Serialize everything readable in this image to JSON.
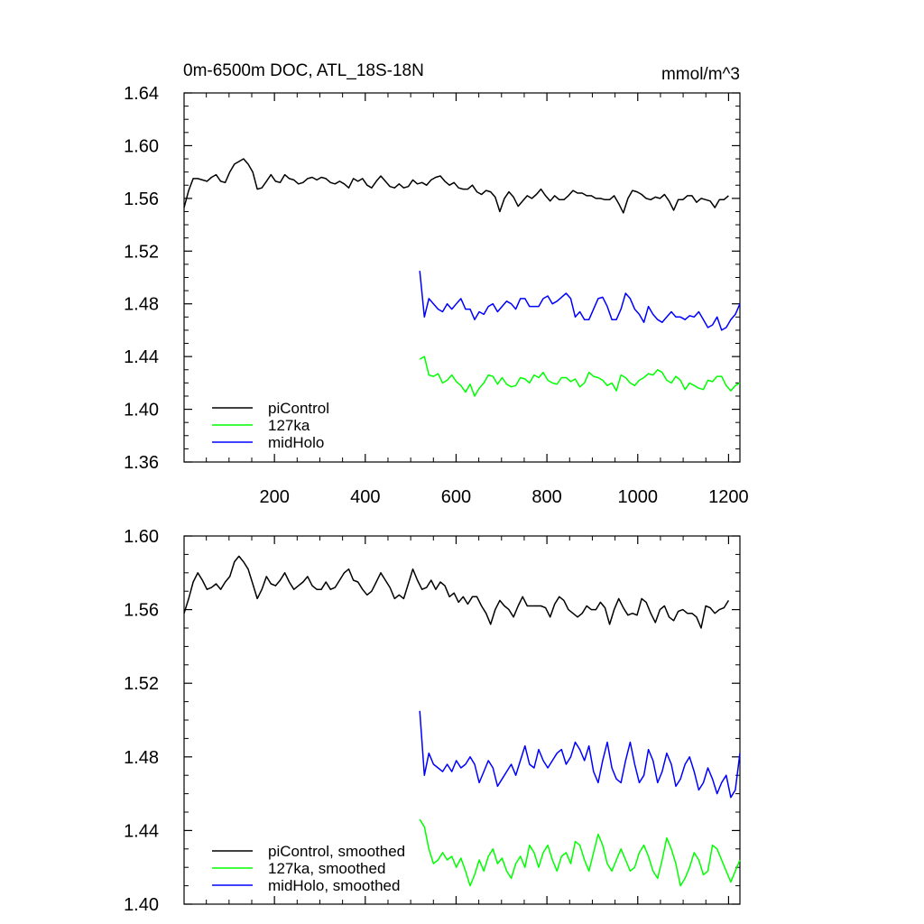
{
  "chart_data": [
    {
      "type": "line",
      "title_left": "0m-6500m DOC, ATL_18S-18N",
      "title_right": "mmol/m^3",
      "xlim": [
        1,
        1225
      ],
      "ylim": [
        1.36,
        1.64
      ],
      "x_ticks": [
        200,
        400,
        600,
        800,
        1000,
        1200
      ],
      "y_ticks": [
        1.36,
        1.4,
        1.44,
        1.48,
        1.52,
        1.56,
        1.6,
        1.64
      ],
      "y_tick_labels": [
        "1.36",
        "1.40",
        "1.44",
        "1.48",
        "1.52",
        "1.56",
        "1.60",
        "1.64"
      ],
      "x_tick_labels": [
        "200",
        "400",
        "600",
        "800",
        "1000",
        "1200"
      ],
      "legend_position": "bottom-left",
      "series": [
        {
          "name": "piControl",
          "color": "#000000",
          "x_start": 1,
          "x_end": 1200,
          "step": 10,
          "values": [
            1.553,
            1.566,
            1.575,
            1.575,
            1.574,
            1.573,
            1.576,
            1.578,
            1.573,
            1.572,
            1.58,
            1.586,
            1.588,
            1.59,
            1.586,
            1.58,
            1.567,
            1.568,
            1.573,
            1.578,
            1.573,
            1.572,
            1.578,
            1.575,
            1.574,
            1.571,
            1.572,
            1.575,
            1.576,
            1.574,
            1.576,
            1.575,
            1.572,
            1.571,
            1.573,
            1.571,
            1.568,
            1.575,
            1.573,
            1.575,
            1.57,
            1.568,
            1.573,
            1.577,
            1.573,
            1.569,
            1.568,
            1.571,
            1.568,
            1.569,
            1.574,
            1.571,
            1.572,
            1.57,
            1.574,
            1.576,
            1.577,
            1.573,
            1.57,
            1.572,
            1.568,
            1.567,
            1.567,
            1.57,
            1.565,
            1.563,
            1.566,
            1.565,
            1.561,
            1.55,
            1.56,
            1.565,
            1.561,
            1.554,
            1.558,
            1.562,
            1.56,
            1.563,
            1.567,
            1.562,
            1.558,
            1.562,
            1.559,
            1.559,
            1.562,
            1.566,
            1.564,
            1.564,
            1.562,
            1.562,
            1.56,
            1.56,
            1.559,
            1.559,
            1.562,
            1.556,
            1.549,
            1.56,
            1.566,
            1.565,
            1.563,
            1.56,
            1.559,
            1.561,
            1.56,
            1.563,
            1.558,
            1.551,
            1.559,
            1.559,
            1.562,
            1.562,
            1.557,
            1.56,
            1.559,
            1.558,
            1.553,
            1.559,
            1.559,
            1.562
          ]
        },
        {
          "name": "127ka",
          "color": "#00ff00",
          "x_start": 520,
          "x_end": 1225,
          "step": 10,
          "values": [
            1.438,
            1.44,
            1.426,
            1.425,
            1.427,
            1.42,
            1.422,
            1.426,
            1.421,
            1.418,
            1.413,
            1.419,
            1.41,
            1.416,
            1.42,
            1.426,
            1.425,
            1.419,
            1.424,
            1.419,
            1.417,
            1.418,
            1.424,
            1.423,
            1.42,
            1.426,
            1.424,
            1.428,
            1.422,
            1.42,
            1.419,
            1.424,
            1.424,
            1.421,
            1.423,
            1.417,
            1.42,
            1.428,
            1.425,
            1.424,
            1.422,
            1.418,
            1.42,
            1.414,
            1.426,
            1.424,
            1.42,
            1.418,
            1.422,
            1.424,
            1.427,
            1.426,
            1.43,
            1.428,
            1.422,
            1.42,
            1.425,
            1.422,
            1.415,
            1.42,
            1.418,
            1.416,
            1.415,
            1.422,
            1.421,
            1.425,
            1.425,
            1.418,
            1.414,
            1.418,
            1.42
          ]
        },
        {
          "name": "midHolo",
          "color": "#0000ff",
          "x_start": 520,
          "x_end": 1225,
          "step": 10,
          "values": [
            1.505,
            1.47,
            1.484,
            1.48,
            1.476,
            1.474,
            1.48,
            1.476,
            1.48,
            1.484,
            1.476,
            1.476,
            1.468,
            1.474,
            1.472,
            1.478,
            1.48,
            1.474,
            1.478,
            1.482,
            1.48,
            1.476,
            1.484,
            1.484,
            1.478,
            1.478,
            1.478,
            1.484,
            1.486,
            1.48,
            1.482,
            1.485,
            1.488,
            1.484,
            1.47,
            1.474,
            1.468,
            1.468,
            1.476,
            1.484,
            1.485,
            1.478,
            1.468,
            1.468,
            1.476,
            1.488,
            1.484,
            1.476,
            1.472,
            1.466,
            1.478,
            1.472,
            1.468,
            1.466,
            1.47,
            1.474,
            1.47,
            1.47,
            1.468,
            1.471,
            1.47,
            1.474,
            1.468,
            1.462,
            1.464,
            1.47,
            1.46,
            1.462,
            1.468,
            1.472,
            1.48
          ]
        }
      ],
      "legend": [
        "piControl",
        "127ka",
        "midHolo"
      ]
    },
    {
      "type": "line",
      "xlim": [
        1,
        1225
      ],
      "ylim": [
        1.4,
        1.6
      ],
      "x_ticks": [
        200,
        400,
        600,
        800,
        1000,
        1200
      ],
      "y_ticks": [
        1.4,
        1.44,
        1.48,
        1.52,
        1.56,
        1.6
      ],
      "y_tick_labels": [
        "1.40",
        "1.44",
        "1.48",
        "1.52",
        "1.56",
        "1.60"
      ],
      "legend_position": "bottom-left",
      "series": [
        {
          "name": "piControl, smoothed",
          "color": "#000000",
          "x_start": 1,
          "x_end": 1200,
          "step": 10,
          "values": [
            1.558,
            1.566,
            1.575,
            1.58,
            1.576,
            1.571,
            1.572,
            1.574,
            1.571,
            1.575,
            1.578,
            1.586,
            1.589,
            1.586,
            1.582,
            1.574,
            1.566,
            1.571,
            1.578,
            1.574,
            1.573,
            1.576,
            1.58,
            1.575,
            1.571,
            1.573,
            1.575,
            1.578,
            1.573,
            1.571,
            1.571,
            1.575,
            1.571,
            1.572,
            1.576,
            1.58,
            1.582,
            1.576,
            1.575,
            1.571,
            1.568,
            1.57,
            1.575,
            1.58,
            1.576,
            1.572,
            1.566,
            1.568,
            1.566,
            1.574,
            1.582,
            1.576,
            1.571,
            1.572,
            1.576,
            1.571,
            1.575,
            1.573,
            1.567,
            1.569,
            1.564,
            1.567,
            1.563,
            1.567,
            1.567,
            1.562,
            1.558,
            1.552,
            1.56,
            1.565,
            1.562,
            1.56,
            1.556,
            1.562,
            1.567,
            1.562,
            1.562,
            1.562,
            1.562,
            1.561,
            1.556,
            1.563,
            1.567,
            1.565,
            1.56,
            1.558,
            1.556,
            1.558,
            1.562,
            1.56,
            1.56,
            1.564,
            1.561,
            1.552,
            1.56,
            1.566,
            1.561,
            1.557,
            1.558,
            1.557,
            1.566,
            1.564,
            1.558,
            1.553,
            1.56,
            1.562,
            1.556,
            1.554,
            1.559,
            1.56,
            1.558,
            1.558,
            1.556,
            1.55,
            1.562,
            1.561,
            1.558,
            1.56,
            1.561,
            1.565
          ]
        },
        {
          "name": "127ka, smoothed",
          "color": "#00ff00",
          "x_start": 520,
          "x_end": 1225,
          "step": 10,
          "values": [
            1.446,
            1.442,
            1.43,
            1.422,
            1.424,
            1.428,
            1.424,
            1.426,
            1.42,
            1.425,
            1.418,
            1.41,
            1.416,
            1.424,
            1.418,
            1.426,
            1.43,
            1.422,
            1.425,
            1.418,
            1.414,
            1.422,
            1.426,
            1.42,
            1.432,
            1.428,
            1.42,
            1.428,
            1.432,
            1.424,
            1.418,
            1.426,
            1.428,
            1.422,
            1.434,
            1.432,
            1.424,
            1.418,
            1.428,
            1.438,
            1.432,
            1.422,
            1.418,
            1.424,
            1.43,
            1.424,
            1.418,
            1.42,
            1.428,
            1.432,
            1.426,
            1.418,
            1.414,
            1.424,
            1.436,
            1.43,
            1.422,
            1.41,
            1.414,
            1.42,
            1.428,
            1.424,
            1.416,
            1.418,
            1.432,
            1.43,
            1.424,
            1.418,
            1.412,
            1.418,
            1.424
          ]
        },
        {
          "name": "midHolo, smoothed",
          "color": "#0000ff",
          "x_start": 520,
          "x_end": 1225,
          "step": 10,
          "values": [
            1.505,
            1.47,
            1.482,
            1.476,
            1.474,
            1.472,
            1.476,
            1.472,
            1.478,
            1.474,
            1.476,
            1.48,
            1.476,
            1.466,
            1.472,
            1.478,
            1.474,
            1.464,
            1.468,
            1.472,
            1.476,
            1.47,
            1.478,
            1.486,
            1.476,
            1.474,
            1.484,
            1.478,
            1.474,
            1.478,
            1.482,
            1.484,
            1.476,
            1.48,
            1.488,
            1.484,
            1.478,
            1.486,
            1.472,
            1.466,
            1.478,
            1.488,
            1.474,
            1.468,
            1.466,
            1.478,
            1.488,
            1.476,
            1.466,
            1.47,
            1.484,
            1.478,
            1.466,
            1.472,
            1.482,
            1.476,
            1.464,
            1.468,
            1.476,
            1.48,
            1.472,
            1.462,
            1.466,
            1.474,
            1.468,
            1.46,
            1.466,
            1.47,
            1.458,
            1.462,
            1.482
          ]
        }
      ],
      "legend": [
        "piControl, smoothed",
        "127ka, smoothed",
        "midHolo, smoothed"
      ]
    }
  ]
}
